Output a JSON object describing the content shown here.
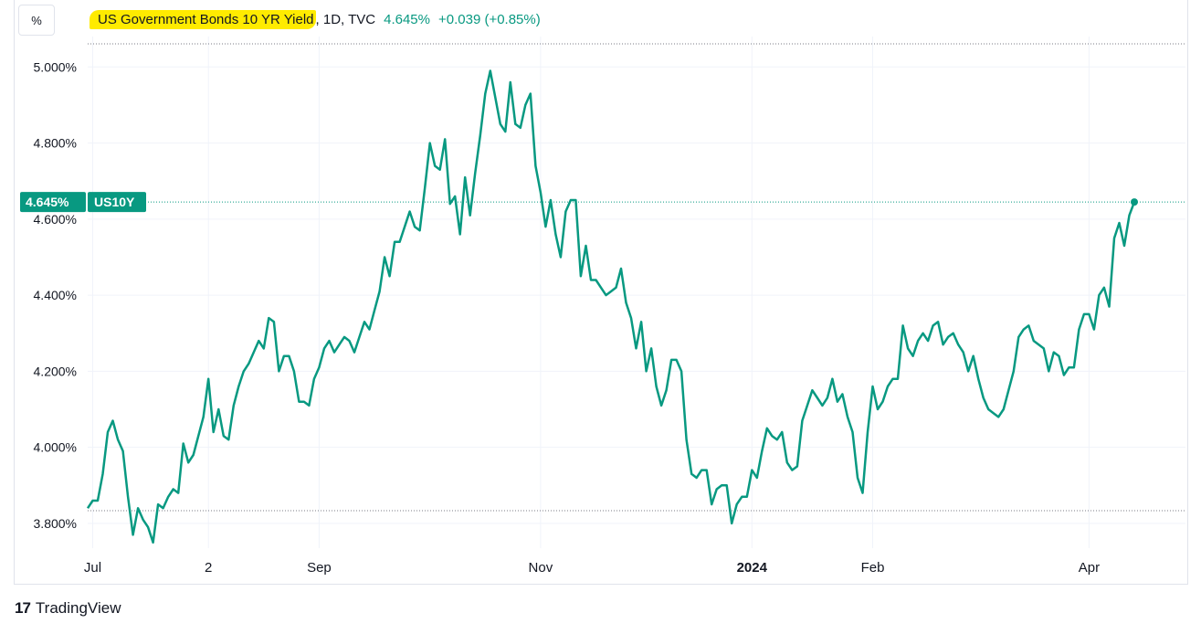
{
  "header": {
    "scale_button": "%",
    "symbol_title": "US Government Bonds 10 YR Yield",
    "meta": ", 1D, TVC",
    "last_value": "4.645%",
    "change": "+0.039 (+0.85%)"
  },
  "price_tag": {
    "value": "4.645%",
    "ticker": "US10Y"
  },
  "footer": {
    "brand_mark": "17",
    "brand_name": "TradingView"
  },
  "colors": {
    "line": "#089981",
    "tag_bg": "#089981",
    "highlight": "#ffeb00",
    "grid": "#f0f3fa"
  },
  "chart_data": {
    "type": "line",
    "title": "US Government Bonds 10 YR Yield",
    "xlabel": "",
    "ylabel": "",
    "ylim": [
      3.735,
      5.08
    ],
    "y_ticks": [
      "5.000%",
      "4.800%",
      "4.600%",
      "4.400%",
      "4.200%",
      "4.000%",
      "3.800%"
    ],
    "y_tick_values": [
      5.0,
      4.8,
      4.6,
      4.4,
      4.2,
      4.0,
      3.8
    ],
    "x_ticks": [
      {
        "label": "Jul",
        "index": 1,
        "bold": false
      },
      {
        "label": "2",
        "index": 24,
        "bold": false
      },
      {
        "label": "Sep",
        "index": 46,
        "bold": false
      },
      {
        "label": "Nov",
        "index": 90,
        "bold": false
      },
      {
        "label": "2024",
        "index": 132,
        "bold": true
      },
      {
        "label": "Feb",
        "index": 156,
        "bold": false
      },
      {
        "label": "Apr",
        "index": 199,
        "bold": false
      }
    ],
    "period_high": 4.99,
    "period_low": 3.73,
    "last": 4.645,
    "series": [
      {
        "name": "US10Y",
        "values": [
          3.84,
          3.86,
          3.86,
          3.93,
          4.04,
          4.07,
          4.02,
          3.99,
          3.87,
          3.77,
          3.84,
          3.81,
          3.79,
          3.75,
          3.85,
          3.84,
          3.87,
          3.89,
          3.88,
          4.01,
          3.96,
          3.98,
          4.03,
          4.08,
          4.18,
          4.04,
          4.1,
          4.03,
          4.02,
          4.11,
          4.16,
          4.2,
          4.22,
          4.25,
          4.28,
          4.26,
          4.34,
          4.33,
          4.2,
          4.24,
          4.24,
          4.2,
          4.12,
          4.12,
          4.11,
          4.18,
          4.21,
          4.26,
          4.28,
          4.25,
          4.27,
          4.29,
          4.28,
          4.25,
          4.29,
          4.33,
          4.31,
          4.36,
          4.41,
          4.5,
          4.45,
          4.54,
          4.54,
          4.58,
          4.62,
          4.58,
          4.57,
          4.68,
          4.8,
          4.74,
          4.73,
          4.81,
          4.64,
          4.66,
          4.56,
          4.71,
          4.61,
          4.72,
          4.82,
          4.93,
          4.99,
          4.92,
          4.85,
          4.83,
          4.96,
          4.85,
          4.84,
          4.9,
          4.93,
          4.74,
          4.67,
          4.58,
          4.65,
          4.56,
          4.5,
          4.62,
          4.65,
          4.65,
          4.45,
          4.53,
          4.44,
          4.44,
          4.42,
          4.4,
          4.41,
          4.42,
          4.47,
          4.38,
          4.34,
          4.26,
          4.33,
          4.2,
          4.26,
          4.16,
          4.11,
          4.15,
          4.23,
          4.23,
          4.2,
          4.02,
          3.93,
          3.92,
          3.94,
          3.94,
          3.85,
          3.89,
          3.9,
          3.9,
          3.8,
          3.85,
          3.87,
          3.87,
          3.94,
          3.92,
          3.99,
          4.05,
          4.03,
          4.02,
          4.04,
          3.96,
          3.94,
          3.95,
          4.07,
          4.11,
          4.15,
          4.13,
          4.11,
          4.13,
          4.18,
          4.12,
          4.14,
          4.08,
          4.04,
          3.92,
          3.88,
          4.04,
          4.16,
          4.1,
          4.12,
          4.16,
          4.18,
          4.18,
          4.32,
          4.26,
          4.24,
          4.28,
          4.3,
          4.28,
          4.32,
          4.33,
          4.27,
          4.29,
          4.3,
          4.27,
          4.25,
          4.2,
          4.24,
          4.18,
          4.13,
          4.1,
          4.09,
          4.08,
          4.1,
          4.15,
          4.2,
          4.29,
          4.31,
          4.32,
          4.28,
          4.27,
          4.26,
          4.2,
          4.25,
          4.24,
          4.19,
          4.21,
          4.21,
          4.31,
          4.35,
          4.35,
          4.31,
          4.4,
          4.42,
          4.37,
          4.55,
          4.59,
          4.53,
          4.61,
          4.645
        ]
      }
    ]
  }
}
